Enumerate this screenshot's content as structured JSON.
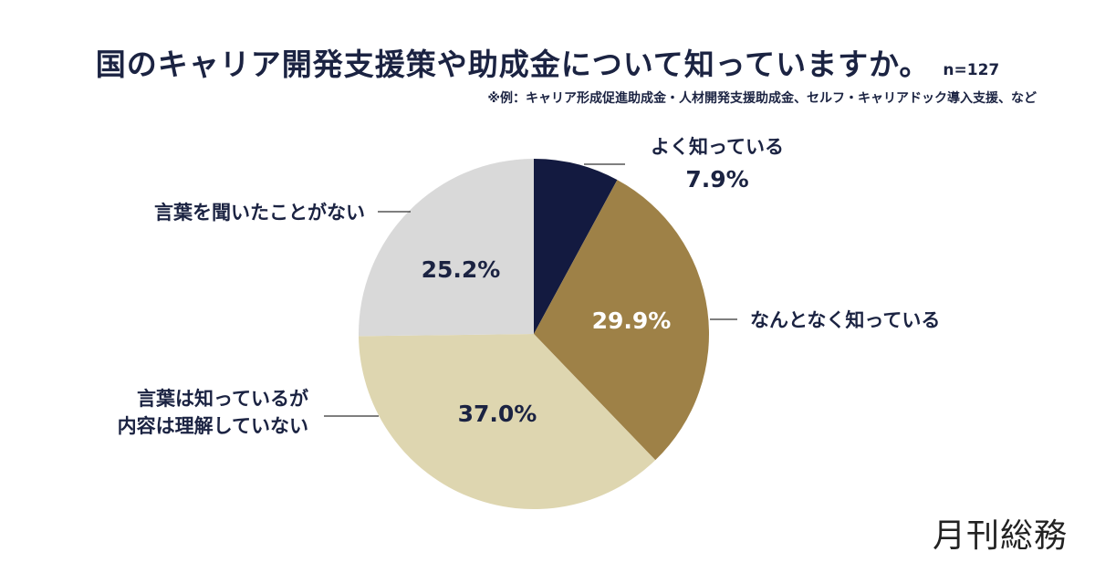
{
  "chart_data": {
    "type": "pie",
    "title": "国のキャリア開発支援策や助成金について知っていますか。",
    "sample_size": "n=127",
    "note": "※例：キャリア形成促進助成金・人材開発支援助成金、セルフ・キャリアドック導入支援、など",
    "start_angle": "top, clockwise",
    "slices": [
      {
        "label": [
          "よく知っている"
        ],
        "value": 7.9,
        "value_label": "7.9%",
        "color": "#131a40",
        "text_color": "#1b2342"
      },
      {
        "label": [
          "なんとなく知っている"
        ],
        "value": 29.9,
        "value_label": "29.9%",
        "color": "#9e8147",
        "text_color": "#ffffff"
      },
      {
        "label": [
          "言葉は知っているが",
          "内容は理解していない"
        ],
        "value": 37.0,
        "value_label": "37.0%",
        "color": "#ded6b0",
        "text_color": "#1b2342"
      },
      {
        "label": [
          "言葉を聞いたことがない"
        ],
        "value": 25.2,
        "value_label": "25.2%",
        "color": "#d9d9d9",
        "text_color": "#1b2342"
      }
    ]
  },
  "brand": "月刊総務"
}
